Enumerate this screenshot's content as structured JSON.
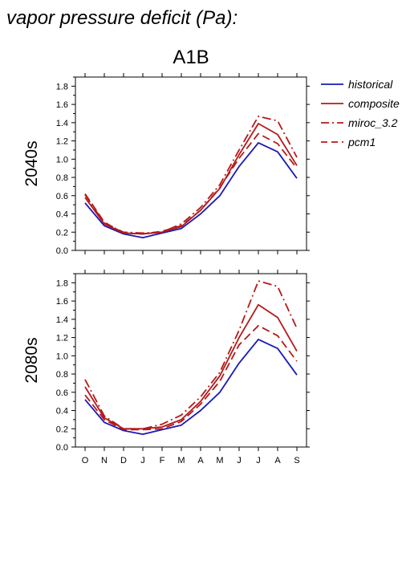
{
  "figure": {
    "title": "vapor pressure deficit (Pa):",
    "scenario": "A1B"
  },
  "colors": {
    "historical": "#1a1ab4",
    "model": "#b41a1a"
  },
  "legend": [
    {
      "name": "historical",
      "style": "solid",
      "color": "#1a1ab4"
    },
    {
      "name": "composite",
      "style": "solid",
      "color": "#b41a1a"
    },
    {
      "name": "miroc_3.2",
      "style": "dashdot",
      "color": "#b41a1a"
    },
    {
      "name": "pcm1",
      "style": "dashed",
      "color": "#b41a1a"
    }
  ],
  "chart_data": [
    {
      "type": "line",
      "panel_label": "2040s",
      "categories": [
        "O",
        "N",
        "D",
        "J",
        "F",
        "M",
        "A",
        "M",
        "J",
        "J",
        "A",
        "S"
      ],
      "ylim": [
        0,
        1.9
      ],
      "yticks": [
        "0.0",
        "0.2",
        "0.4",
        "0.6",
        "0.8",
        "1.0",
        "1.2",
        "1.4",
        "1.6",
        "1.8"
      ],
      "series": [
        {
          "name": "historical",
          "style": "solid",
          "color": "#1a1ab4",
          "values": [
            0.52,
            0.27,
            0.18,
            0.14,
            0.19,
            0.24,
            0.4,
            0.6,
            0.92,
            1.18,
            1.08,
            0.79
          ]
        },
        {
          "name": "composite",
          "style": "solid",
          "color": "#b41a1a",
          "values": [
            0.58,
            0.29,
            0.19,
            0.18,
            0.2,
            0.26,
            0.44,
            0.68,
            1.05,
            1.39,
            1.27,
            0.93
          ]
        },
        {
          "name": "miroc_3.2",
          "style": "dashdot",
          "color": "#b41a1a",
          "values": [
            0.61,
            0.3,
            0.2,
            0.19,
            0.2,
            0.29,
            0.47,
            0.72,
            1.1,
            1.47,
            1.42,
            1.02
          ]
        },
        {
          "name": "pcm1",
          "style": "dashed",
          "color": "#b41a1a",
          "values": [
            0.62,
            0.31,
            0.19,
            0.18,
            0.21,
            0.27,
            0.44,
            0.69,
            1.01,
            1.28,
            1.17,
            0.9
          ]
        }
      ]
    },
    {
      "type": "line",
      "panel_label": "2080s",
      "categories": [
        "O",
        "N",
        "D",
        "J",
        "F",
        "M",
        "A",
        "M",
        "J",
        "J",
        "A",
        "S"
      ],
      "ylim": [
        0,
        1.9
      ],
      "yticks": [
        "0.0",
        "0.2",
        "0.4",
        "0.6",
        "0.8",
        "1.0",
        "1.2",
        "1.4",
        "1.6",
        "1.8"
      ],
      "series": [
        {
          "name": "historical",
          "style": "solid",
          "color": "#1a1ab4",
          "values": [
            0.52,
            0.27,
            0.18,
            0.14,
            0.19,
            0.24,
            0.4,
            0.6,
            0.92,
            1.18,
            1.08,
            0.79
          ]
        },
        {
          "name": "composite",
          "style": "solid",
          "color": "#b41a1a",
          "values": [
            0.66,
            0.32,
            0.2,
            0.2,
            0.22,
            0.3,
            0.5,
            0.78,
            1.2,
            1.56,
            1.42,
            1.05
          ]
        },
        {
          "name": "miroc_3.2",
          "style": "dashdot",
          "color": "#b41a1a",
          "values": [
            0.74,
            0.34,
            0.2,
            0.2,
            0.25,
            0.35,
            0.55,
            0.82,
            1.28,
            1.82,
            1.76,
            1.3
          ]
        },
        {
          "name": "pcm1",
          "style": "dashed",
          "color": "#b41a1a",
          "values": [
            0.57,
            0.3,
            0.19,
            0.19,
            0.2,
            0.28,
            0.47,
            0.72,
            1.12,
            1.33,
            1.22,
            0.94
          ]
        }
      ]
    }
  ]
}
